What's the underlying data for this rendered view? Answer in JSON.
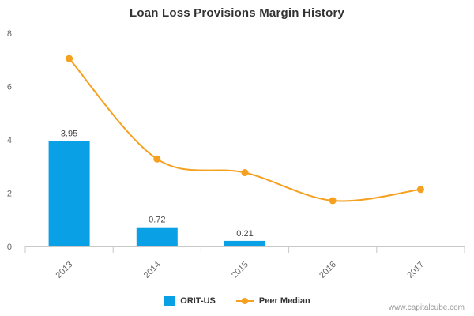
{
  "title": "Loan Loss Provisions Margin History",
  "credit": "www.capitalcube.com",
  "colors": {
    "bar": "#0aa0e6",
    "line": "#f5a01e",
    "axis": "#c8c8c8",
    "tick_text": "#666666"
  },
  "chart_data": {
    "type": "bar",
    "title": "Loan Loss Provisions Margin History",
    "categories": [
      "2013",
      "2014",
      "2015",
      "2016",
      "2017"
    ],
    "ylim": [
      0,
      8
    ],
    "yticks": [
      0,
      2,
      4,
      6,
      8
    ],
    "grid": false,
    "legend_position": "bottom",
    "series": [
      {
        "name": "ORIT-US",
        "kind": "bar",
        "values": [
          3.95,
          0.72,
          0.21,
          null,
          null
        ],
        "labels": [
          "3.95",
          "0.72",
          "0.21",
          "",
          ""
        ]
      },
      {
        "name": "Peer Median",
        "kind": "line",
        "values": [
          7.05,
          3.28,
          2.77,
          1.72,
          2.14
        ]
      }
    ]
  }
}
